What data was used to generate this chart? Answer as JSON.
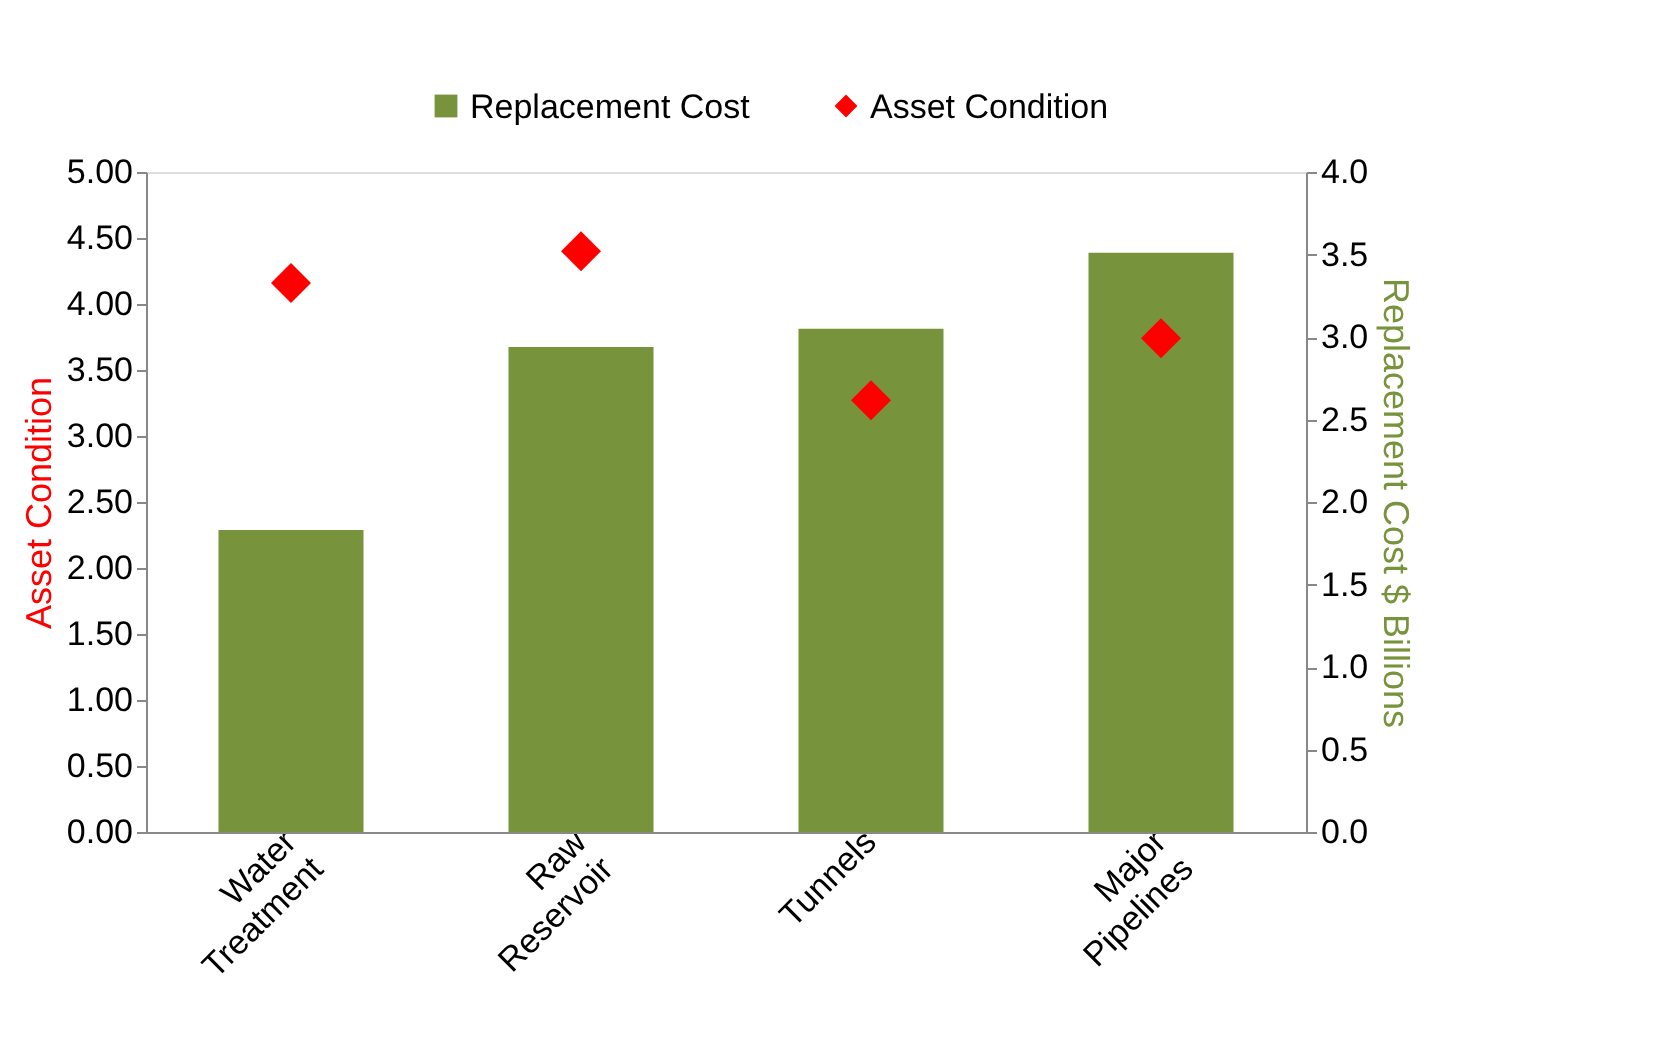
{
  "chart_data": {
    "type": "bar",
    "categories": [
      "Water Treatment",
      "Raw Reservoir",
      "Tunnels",
      "Major Pipelines"
    ],
    "series": [
      {
        "name": "Replacement Cost",
        "axis": "y2",
        "color": "#77933c",
        "values": [
          1.83,
          2.94,
          3.05,
          3.51
        ]
      },
      {
        "name": "Asset Condition",
        "type": "scatter",
        "marker": "diamond",
        "color": "#ff0000",
        "values": [
          4.16,
          4.4,
          3.27,
          3.74
        ]
      }
    ],
    "ylabel": "Asset Condition",
    "y2label": "Replacement Cost $ Billions",
    "ylim": [
      0,
      5
    ],
    "yticks": [
      {
        "value": 0,
        "label": "0.00"
      },
      {
        "value": 0.5,
        "label": "0.50"
      },
      {
        "value": 1,
        "label": "1.00"
      },
      {
        "value": 1.5,
        "label": "1.50"
      },
      {
        "value": 2,
        "label": "2.00"
      },
      {
        "value": 2.5,
        "label": "2.50"
      },
      {
        "value": 3,
        "label": "3.00"
      },
      {
        "value": 3.5,
        "label": "3.50"
      },
      {
        "value": 4,
        "label": "4.00"
      },
      {
        "value": 4.5,
        "label": "4.50"
      },
      {
        "value": 5,
        "label": "5.00"
      }
    ],
    "y2lim": [
      0,
      4
    ],
    "y2ticks": [
      {
        "value": 0,
        "label": "0.0"
      },
      {
        "value": 0.5,
        "label": "0.5"
      },
      {
        "value": 1,
        "label": "1.0"
      },
      {
        "value": 1.5,
        "label": "1.5"
      },
      {
        "value": 2,
        "label": "2.0"
      },
      {
        "value": 2.5,
        "label": "2.5"
      },
      {
        "value": 3,
        "label": "3.0"
      },
      {
        "value": 3.5,
        "label": "3.5"
      },
      {
        "value": 4,
        "label": "4.0"
      }
    ],
    "grid": false,
    "legend": "top"
  }
}
